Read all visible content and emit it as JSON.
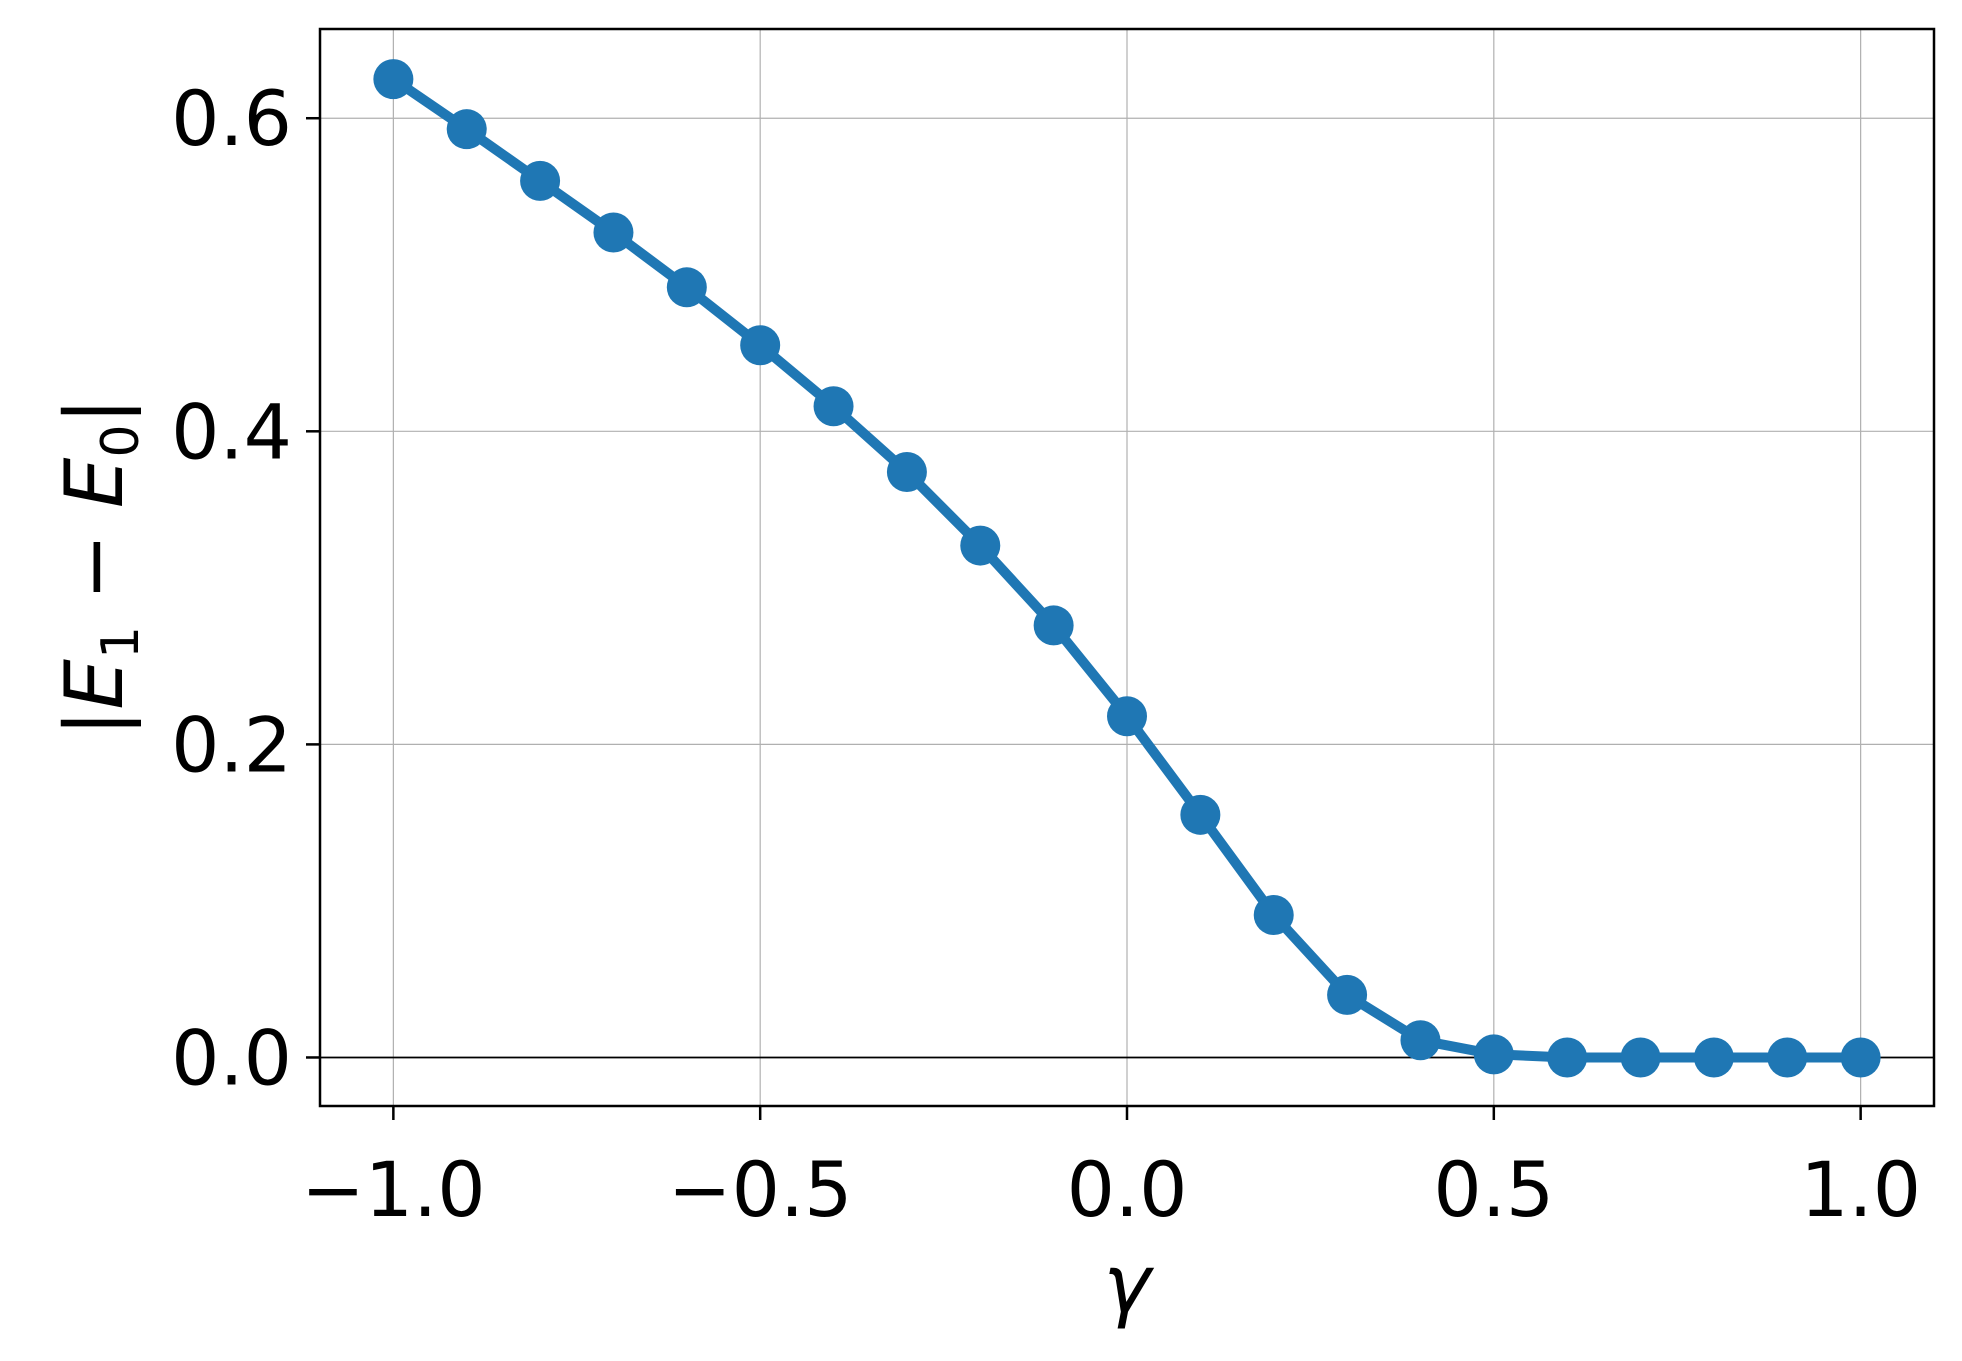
{
  "chart_data": {
    "type": "line",
    "title": "",
    "xlabel": "γ",
    "ylabel": {
      "prefix": "|",
      "e1": "E",
      "e1_sub": "1",
      "minus": " − ",
      "e0": "E",
      "e0_sub": "0",
      "suffix": "|"
    },
    "xlim": [
      -1.1,
      1.1
    ],
    "ylim": [
      -0.031,
      0.657
    ],
    "xticks": [
      -1.0,
      -0.5,
      0.0,
      0.5,
      1.0
    ],
    "xtick_labels": [
      "−1.0",
      "−0.5",
      "0.0",
      "0.5",
      "1.0"
    ],
    "yticks": [
      0.0,
      0.2,
      0.4,
      0.6
    ],
    "ytick_labels": [
      "0.0",
      "0.2",
      "0.4",
      "0.6"
    ],
    "grid": true,
    "zero_line": true,
    "series": [
      {
        "color": "#1f77b4",
        "marker": "circle",
        "x": [
          -1.0,
          -0.9,
          -0.8,
          -0.7,
          -0.6,
          -0.5,
          -0.4,
          -0.3,
          -0.2,
          -0.1,
          0.0,
          0.1,
          0.2,
          0.3,
          0.4,
          0.5,
          0.6,
          0.7,
          0.8,
          0.9,
          1.0
        ],
        "y": [
          0.625,
          0.593,
          0.56,
          0.527,
          0.492,
          0.455,
          0.416,
          0.374,
          0.327,
          0.276,
          0.218,
          0.155,
          0.091,
          0.04,
          0.011,
          0.002,
          0.0,
          0.0,
          0.0,
          0.0,
          0.0
        ]
      }
    ]
  }
}
